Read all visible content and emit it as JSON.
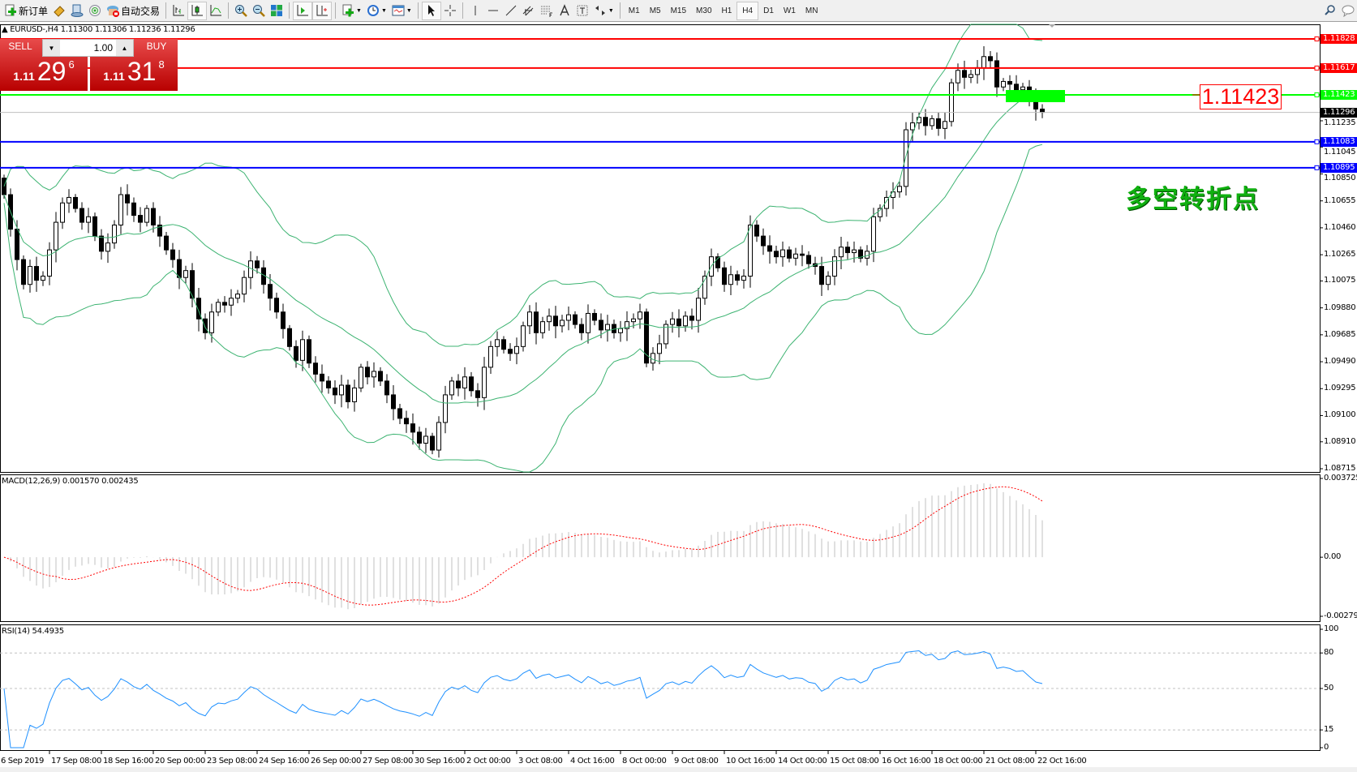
{
  "toolbar": {
    "new_order": "新订单",
    "auto_trading": "自动交易",
    "periods": [
      "M1",
      "M5",
      "M15",
      "M30",
      "H1",
      "H4",
      "D1",
      "W1",
      "MN"
    ],
    "active_period": "H4"
  },
  "chart_header": "EURUSD-,H4  1.11300 1.11306 1.11236 1.11296",
  "trade_panel": {
    "sell_label": "SELL",
    "buy_label": "BUY",
    "lot": "1.00",
    "sell_price": {
      "prefix": "1.11",
      "big": "29",
      "sup": "6"
    },
    "buy_price": {
      "prefix": "1.11",
      "big": "31",
      "sup": "8"
    }
  },
  "annotation": {
    "price_label": "1.11423",
    "text": "多空转折点"
  },
  "colors": {
    "resistance": "#ff0000",
    "pivot": "#00ff00",
    "support": "#0000ff",
    "bid": "#c0c0c0",
    "bands": "#3cb371",
    "rsi": "#1e90ff",
    "macd_signal": "#ff0000",
    "macd_hist": "#c0c0c0"
  },
  "chart_data": {
    "type": "candlestick",
    "symbol": "EURUSD-",
    "timeframe": "H4",
    "ylim": [
      1.08715,
      1.11828
    ],
    "price_ticks": [
      "1.11235",
      "1.11045",
      "1.10850",
      "1.10655",
      "1.10460",
      "1.10265",
      "1.10075",
      "1.09880",
      "1.09685",
      "1.09490",
      "1.09295",
      "1.09100",
      "1.08910",
      "1.08715"
    ],
    "horizontal_lines": [
      {
        "price": 1.11828,
        "label": "1.11828",
        "color": "#ff0000"
      },
      {
        "price": 1.11617,
        "label": "1.11617",
        "color": "#ff0000"
      },
      {
        "price": 1.11423,
        "label": "1.11423",
        "color": "#00ff00"
      },
      {
        "price": 1.11296,
        "label": "1.11296",
        "color": "#000000",
        "kind": "bid"
      },
      {
        "price": 1.11083,
        "label": "1.11083",
        "color": "#0000ff"
      },
      {
        "price": 1.10895,
        "label": "1.10895",
        "color": "#0000ff"
      }
    ],
    "x_labels": [
      "6 Sep 2019",
      "17 Sep 08:00",
      "18 Sep 16:00",
      "20 Sep 00:00",
      "23 Sep 08:00",
      "24 Sep 16:00",
      "26 Sep 00:00",
      "27 Sep 08:00",
      "30 Sep 16:00",
      "2 Oct 00:00",
      "3 Oct 08:00",
      "4 Oct 16:00",
      "8 Oct 00:00",
      "9 Oct 08:00",
      "10 Oct 16:00",
      "14 Oct 00:00",
      "15 Oct 08:00",
      "16 Oct 16:00",
      "18 Oct 00:00",
      "21 Oct 08:00",
      "22 Oct 16:00"
    ],
    "closes": [
      1.107,
      1.1045,
      1.1023,
      1.1005,
      1.1018,
      1.1008,
      1.1011,
      1.103,
      1.105,
      1.1064,
      1.1068,
      1.106,
      1.105,
      1.1054,
      1.104,
      1.1029,
      1.1035,
      1.1048,
      1.107,
      1.1064,
      1.1055,
      1.105,
      1.106,
      1.1048,
      1.104,
      1.103,
      1.1023,
      1.101,
      1.1015,
      1.0995,
      1.098,
      1.097,
      1.0985,
      1.0992,
      1.099,
      1.0995,
      1.0998,
      1.101,
      1.1022,
      1.1017,
      1.1005,
      1.0995,
      1.0985,
      1.0973,
      1.096,
      1.095,
      1.0965,
      1.0948,
      1.094,
      1.0935,
      1.093,
      1.0925,
      1.0932,
      1.092,
      1.093,
      1.0945,
      1.0938,
      1.0942,
      1.0935,
      1.0925,
      1.0915,
      1.0908,
      1.0904,
      1.0898,
      1.089,
      1.0895,
      1.0885,
      1.0905,
      1.0925,
      1.0935,
      1.093,
      1.0938,
      1.0928,
      1.0923,
      1.0945,
      1.096,
      1.0965,
      1.0958,
      1.0955,
      1.096,
      1.0975,
      1.0985,
      1.097,
      1.0978,
      1.0982,
      1.0975,
      1.0979,
      1.0983,
      1.0976,
      1.097,
      1.0984,
      1.0979,
      1.0972,
      1.0976,
      1.097,
      1.0973,
      1.0978,
      1.098,
      1.0985,
      1.0948,
      1.0955,
      1.0962,
      1.0976,
      1.098,
      1.0975,
      1.0982,
      1.0979,
      1.0995,
      1.1011,
      1.1025,
      1.1017,
      1.1005,
      1.1012,
      1.1008,
      1.1011,
      1.1048,
      1.104,
      1.1033,
      1.1029,
      1.1025,
      1.103,
      1.1024,
      1.1027,
      1.1026,
      1.102,
      1.1018,
      1.1005,
      1.1011,
      1.1025,
      1.1032,
      1.1028,
      1.103,
      1.1024,
      1.1029,
      1.1054,
      1.106,
      1.1068,
      1.1072,
      1.1076,
      1.1117,
      1.1122,
      1.1126,
      1.112,
      1.1125,
      1.1118,
      1.1123,
      1.1151,
      1.116,
      1.1155,
      1.1157,
      1.1162,
      1.117,
      1.1167,
      1.1148,
      1.1152,
      1.115,
      1.1146,
      1.1148,
      1.114,
      1.1132,
      1.11296
    ],
    "indicators": {
      "bands": "Bollinger Bands (20)",
      "macd": {
        "label": "MACD(12,26,9) 0.001570 0.002435",
        "ylim": [
          -0.002794,
          0.003725
        ],
        "ticks": [
          "0.003725",
          "0.00",
          "-0.002794"
        ]
      },
      "rsi": {
        "label": "RSI(14) 54.4935",
        "ylim": [
          0,
          100
        ],
        "levels": [
          80,
          50,
          15
        ],
        "ticks": [
          "100",
          "80",
          "50",
          "15",
          "0"
        ]
      }
    }
  }
}
